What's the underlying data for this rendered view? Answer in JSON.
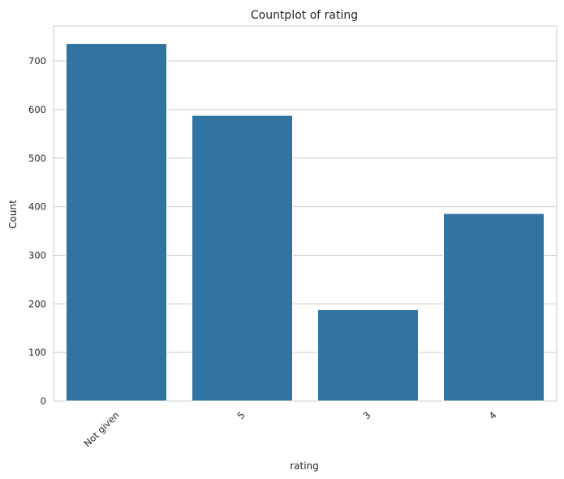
{
  "chart_data": {
    "type": "bar",
    "title": "Countplot of rating",
    "xlabel": "rating",
    "ylabel": "Count",
    "categories": [
      "Not given",
      "5",
      "3",
      "4"
    ],
    "values": [
      736,
      588,
      188,
      386
    ],
    "ylim": [
      0,
      772
    ],
    "yticks": [
      0,
      100,
      200,
      300,
      400,
      500,
      600,
      700
    ],
    "bar_color": "#3274a1",
    "grid": true,
    "legend": "none"
  }
}
